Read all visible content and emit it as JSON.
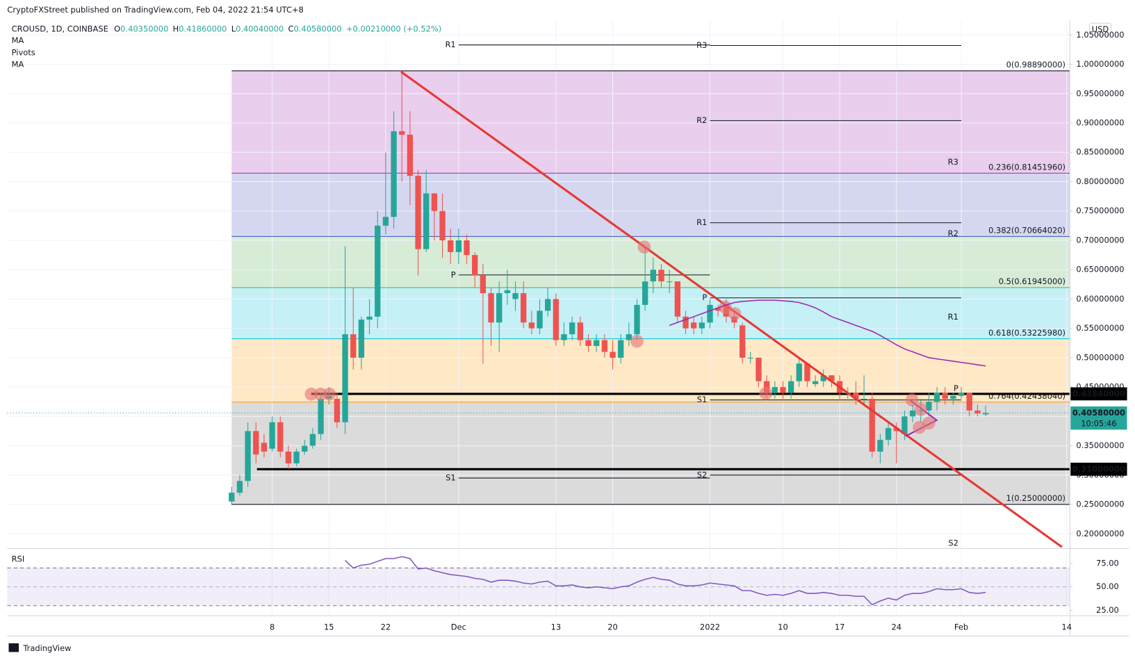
{
  "header": {
    "published": "CryptoFXStreet published on TradingView.com, Feb 04, 2022 21:54 UTC+8",
    "symbol": "CROUSD, 1D, COINBASE",
    "ohlc": [
      {
        "label": "O",
        "value": "0.40350000"
      },
      {
        "label": "H",
        "value": "0.41860000"
      },
      {
        "label": "L",
        "value": "0.40040000"
      },
      {
        "label": "C",
        "value": "0.40580000"
      }
    ],
    "change": "+0.00210000 (+0.52%)",
    "indicators": [
      "MA",
      "Pivots",
      "MA"
    ]
  },
  "chart_data": [
    {
      "type": "candlestick",
      "currency": "USD",
      "grid": true,
      "up_color": "#26a69a",
      "down_color": "#ef5350",
      "xlim": [
        -27.68,
        103.39
      ],
      "xticks": [
        {
          "value": 5,
          "label": "8"
        },
        {
          "value": 12,
          "label": "15"
        },
        {
          "value": 19,
          "label": "22"
        },
        {
          "value": 28,
          "label": "Dec"
        },
        {
          "value": 40,
          "label": "13"
        },
        {
          "value": 47,
          "label": "20"
        },
        {
          "value": 59,
          "label": "2022"
        },
        {
          "value": 68,
          "label": "10"
        },
        {
          "value": 75,
          "label": "17"
        },
        {
          "value": 82,
          "label": "24"
        },
        {
          "value": 90,
          "label": "Feb"
        },
        {
          "value": 103,
          "label": "14"
        }
      ],
      "ylim": [
        0.175,
        1.075
      ],
      "yticks": [
        {
          "value": 0.2,
          "label": "0.20000000"
        },
        {
          "value": 0.25,
          "label": "0.25000000"
        },
        {
          "value": 0.3,
          "label": "0.30000000"
        },
        {
          "value": 0.35,
          "label": "0.35000000"
        },
        {
          "value": 0.4,
          "label": "0.40000000"
        },
        {
          "value": 0.45,
          "label": "0.45000000"
        },
        {
          "value": 0.5,
          "label": "0.50000000"
        },
        {
          "value": 0.55,
          "label": "0.55000000"
        },
        {
          "value": 0.6,
          "label": "0.60000000"
        },
        {
          "value": 0.65,
          "label": "0.65000000"
        },
        {
          "value": 0.7,
          "label": "0.70000000"
        },
        {
          "value": 0.75,
          "label": "0.75000000"
        },
        {
          "value": 0.8,
          "label": "0.80000000"
        },
        {
          "value": 0.85,
          "label": "0.85000000"
        },
        {
          "value": 0.9,
          "label": "0.90000000"
        },
        {
          "value": 0.95,
          "label": "0.95000000"
        },
        {
          "value": 1.0,
          "label": "1.00000000"
        },
        {
          "value": 1.05,
          "label": "1.05000000"
        }
      ],
      "open": [
        0.255,
        0.27,
        0.29,
        0.375,
        0.355,
        0.345,
        0.39,
        0.34,
        0.32,
        0.34,
        0.35,
        0.37,
        0.43,
        0.43,
        0.39,
        0.54,
        0.5,
        0.565,
        0.57,
        0.725,
        0.74,
        0.886,
        0.88,
        0.81,
        0.685,
        0.78,
        0.75,
        0.7,
        0.68,
        0.7,
        0.675,
        0.64,
        0.61,
        0.56,
        0.61,
        0.6,
        0.61,
        0.56,
        0.55,
        0.58,
        0.6,
        0.53,
        0.54,
        0.56,
        0.53,
        0.52,
        0.53,
        0.51,
        0.5,
        0.53,
        0.54,
        0.59,
        0.63,
        0.65,
        0.63,
        0.63,
        0.57,
        0.56,
        0.55,
        0.56,
        0.585,
        0.59,
        0.57,
        0.555,
        0.5,
        0.5,
        0.46,
        0.44,
        0.45,
        0.44,
        0.46,
        0.49,
        0.455,
        0.46,
        0.47,
        0.46,
        0.44,
        0.44,
        0.43,
        0.43,
        0.34,
        0.36,
        0.38,
        0.37,
        0.4,
        0.41,
        0.41,
        0.425,
        0.44,
        0.43,
        0.435,
        0.44,
        0.41,
        0.4035
      ],
      "high": [
        0.28,
        0.3,
        0.39,
        0.39,
        0.37,
        0.4,
        0.4,
        0.35,
        0.345,
        0.36,
        0.38,
        0.44,
        0.45,
        0.44,
        0.69,
        0.62,
        0.57,
        0.6,
        0.75,
        0.85,
        0.92,
        0.989,
        0.92,
        0.82,
        0.82,
        0.78,
        0.78,
        0.72,
        0.72,
        0.71,
        0.68,
        0.66,
        0.62,
        0.63,
        0.65,
        0.63,
        0.63,
        0.58,
        0.6,
        0.62,
        0.61,
        0.56,
        0.57,
        0.57,
        0.54,
        0.54,
        0.54,
        0.53,
        0.54,
        0.56,
        0.6,
        0.69,
        0.67,
        0.66,
        0.65,
        0.63,
        0.58,
        0.57,
        0.57,
        0.6,
        0.59,
        0.6,
        0.58,
        0.56,
        0.51,
        0.5,
        0.47,
        0.46,
        0.46,
        0.47,
        0.5,
        0.49,
        0.47,
        0.48,
        0.47,
        0.47,
        0.45,
        0.46,
        0.47,
        0.44,
        0.37,
        0.39,
        0.39,
        0.41,
        0.42,
        0.43,
        0.44,
        0.45,
        0.45,
        0.44,
        0.45,
        0.44,
        0.42,
        0.4186
      ],
      "low": [
        0.25,
        0.265,
        0.28,
        0.32,
        0.33,
        0.34,
        0.33,
        0.31,
        0.315,
        0.335,
        0.345,
        0.36,
        0.42,
        0.38,
        0.37,
        0.48,
        0.48,
        0.54,
        0.55,
        0.71,
        0.72,
        0.8,
        0.76,
        0.64,
        0.68,
        0.7,
        0.67,
        0.66,
        0.66,
        0.66,
        0.62,
        0.49,
        0.52,
        0.51,
        0.59,
        0.58,
        0.55,
        0.54,
        0.54,
        0.57,
        0.52,
        0.52,
        0.53,
        0.52,
        0.51,
        0.51,
        0.5,
        0.48,
        0.49,
        0.52,
        0.53,
        0.58,
        0.61,
        0.62,
        0.61,
        0.56,
        0.54,
        0.54,
        0.54,
        0.55,
        0.57,
        0.56,
        0.55,
        0.49,
        0.49,
        0.45,
        0.43,
        0.43,
        0.43,
        0.43,
        0.45,
        0.45,
        0.45,
        0.45,
        0.45,
        0.43,
        0.43,
        0.42,
        0.42,
        0.33,
        0.32,
        0.35,
        0.32,
        0.36,
        0.39,
        0.39,
        0.4,
        0.41,
        0.42,
        0.42,
        0.43,
        0.4,
        0.4,
        0.4004
      ],
      "close": [
        0.27,
        0.29,
        0.375,
        0.335,
        0.34,
        0.39,
        0.34,
        0.32,
        0.34,
        0.35,
        0.37,
        0.43,
        0.435,
        0.39,
        0.54,
        0.5,
        0.565,
        0.57,
        0.725,
        0.74,
        0.886,
        0.88,
        0.81,
        0.685,
        0.78,
        0.75,
        0.7,
        0.68,
        0.7,
        0.675,
        0.64,
        0.61,
        0.56,
        0.61,
        0.615,
        0.61,
        0.56,
        0.55,
        0.58,
        0.6,
        0.53,
        0.54,
        0.56,
        0.53,
        0.52,
        0.53,
        0.51,
        0.5,
        0.53,
        0.54,
        0.59,
        0.63,
        0.65,
        0.63,
        0.63,
        0.57,
        0.55,
        0.55,
        0.56,
        0.59,
        0.58,
        0.57,
        0.56,
        0.5,
        0.5,
        0.46,
        0.44,
        0.45,
        0.44,
        0.46,
        0.49,
        0.46,
        0.46,
        0.47,
        0.46,
        0.44,
        0.44,
        0.43,
        0.43,
        0.34,
        0.36,
        0.38,
        0.375,
        0.4,
        0.41,
        0.41,
        0.425,
        0.44,
        0.43,
        0.435,
        0.44,
        0.41,
        0.405,
        0.4058
      ],
      "ma": {
        "color": "#9c27b0",
        "values": [
          null,
          null,
          null,
          null,
          null,
          null,
          null,
          null,
          null,
          null,
          null,
          null,
          null,
          null,
          null,
          null,
          null,
          null,
          null,
          null,
          null,
          null,
          null,
          null,
          null,
          null,
          null,
          null,
          null,
          null,
          null,
          null,
          null,
          null,
          null,
          null,
          null,
          null,
          null,
          null,
          null,
          null,
          null,
          null,
          null,
          null,
          null,
          null,
          null,
          null,
          null,
          null,
          null,
          null,
          0.555,
          0.56,
          0.565,
          0.57,
          0.575,
          0.58,
          0.585,
          0.59,
          0.594,
          0.596,
          0.597,
          0.598,
          0.598,
          0.598,
          0.597,
          0.596,
          0.594,
          0.59,
          0.585,
          0.578,
          0.57,
          0.565,
          0.56,
          0.555,
          0.55,
          0.545,
          0.538,
          0.53,
          0.522,
          0.515,
          0.51,
          0.505,
          0.5,
          0.498,
          0.496,
          0.494,
          0.492,
          0.49,
          0.488,
          0.486
        ]
      },
      "fib_levels": [
        {
          "value": 0.9889,
          "label": "0(0.98890000)",
          "color": "#131722",
          "fill": "#e1bee7"
        },
        {
          "value": 0.8145196,
          "label": "0.236(0.81451960)",
          "color": "#9c27b0",
          "fill": "#c5cae9"
        },
        {
          "value": 0.7066402,
          "label": "0.382(0.70664020)",
          "color": "#3f51b5",
          "fill": "#c8e6c9"
        },
        {
          "value": 0.61945,
          "label": "0.5(0.61945000)",
          "color": "#4caf50",
          "fill": "#b2ebf2"
        },
        {
          "value": 0.5322598,
          "label": "0.618(0.53225980)",
          "color": "#00bcd4",
          "fill": "#ffe0b2"
        },
        {
          "value": 0.4243804,
          "label": "0.764(0.42438040)",
          "color": "#ff9800",
          "fill": "#cfcfcf"
        },
        {
          "value": 0.25,
          "label": "1(0.25000000)",
          "color": "#131722"
        }
      ],
      "pivots": [
        [
          {
            "label": "R1",
            "value": 1.033
          },
          {
            "label": "P",
            "value": 0.641
          },
          {
            "label": "S1",
            "value": 0.295
          }
        ],
        [
          {
            "label": "R3",
            "value": 1.032
          },
          {
            "label": "R2",
            "value": 0.904
          },
          {
            "label": "R1",
            "value": 0.73
          },
          {
            "label": "P",
            "value": 0.602
          },
          {
            "label": "S1",
            "value": 0.428
          },
          {
            "label": "S2",
            "value": 0.3
          }
        ],
        [
          {
            "label": "R3",
            "value": 0.833
          },
          {
            "label": "R2",
            "value": 0.711
          },
          {
            "label": "R1",
            "value": 0.569
          },
          {
            "label": "P",
            "value": 0.447
          },
          {
            "label": "S2",
            "value": 0.184
          }
        ]
      ],
      "levels": [
        {
          "value": 0.4384,
          "label": "0.43840000"
        },
        {
          "value": 0.31,
          "label": "0.31000000"
        }
      ],
      "last_price": {
        "value": 0.4058,
        "label": "0.40580000",
        "countdown": "10:05:46"
      }
    },
    {
      "type": "line",
      "title": "RSI",
      "color": "#7e57c2",
      "band": [
        30,
        70
      ],
      "midline": 50,
      "ylim": [
        19.2,
        90.8
      ],
      "yticks": [
        {
          "value": 75,
          "label": "75.00"
        },
        {
          "value": 50,
          "label": "50.00"
        },
        {
          "value": 25,
          "label": "25.00"
        }
      ],
      "values": [
        null,
        null,
        null,
        null,
        null,
        null,
        null,
        null,
        null,
        null,
        null,
        null,
        null,
        null,
        78,
        70,
        73,
        74,
        77,
        80,
        80,
        82,
        80,
        69,
        70,
        67,
        65,
        63,
        62,
        61,
        59,
        58,
        55,
        57,
        57,
        56,
        54,
        53,
        55,
        56,
        51,
        51,
        52,
        50,
        49,
        50,
        49,
        48,
        50,
        51,
        55,
        58,
        60,
        58,
        57,
        53,
        51,
        51,
        52,
        54,
        53,
        52,
        51,
        46,
        46,
        43,
        41,
        42,
        41,
        43,
        46,
        43,
        43,
        44,
        43,
        41,
        41,
        40,
        40,
        31,
        35,
        38,
        36,
        41,
        43,
        43,
        45,
        48,
        47,
        47,
        48,
        44,
        43,
        44
      ]
    }
  ],
  "footer": {
    "brand": "TradingView"
  }
}
